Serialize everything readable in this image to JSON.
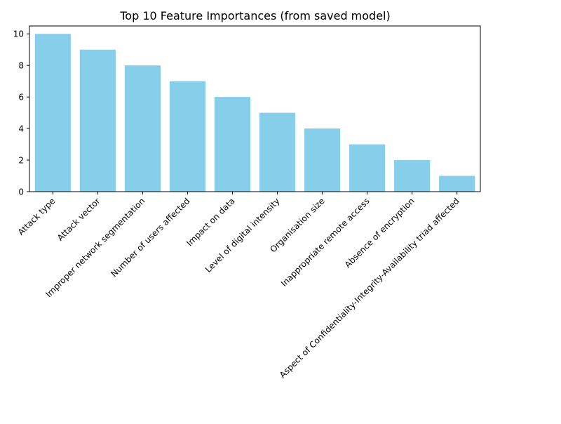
{
  "chart_data": {
    "type": "bar",
    "title": "Top 10 Feature Importances (from saved model)",
    "xlabel": "",
    "ylabel": "",
    "categories": [
      "Attack type",
      "Attack vector",
      "Improper network segmentation",
      "Number of users affected",
      "Impact on data",
      "Level of digital intensity",
      "Organisation size",
      "Inappropriate remote access",
      "Absence of encryption",
      "Aspect of Confidentiality-Integrity-Availability triad affected"
    ],
    "values": [
      10,
      9,
      8,
      7,
      6,
      5,
      4,
      3,
      2,
      1
    ],
    "ylim": [
      0,
      10.5
    ],
    "yticks": [
      0,
      2,
      4,
      6,
      8,
      10
    ],
    "bar_color": "#87ceeb",
    "grid": false,
    "legend": "none"
  }
}
